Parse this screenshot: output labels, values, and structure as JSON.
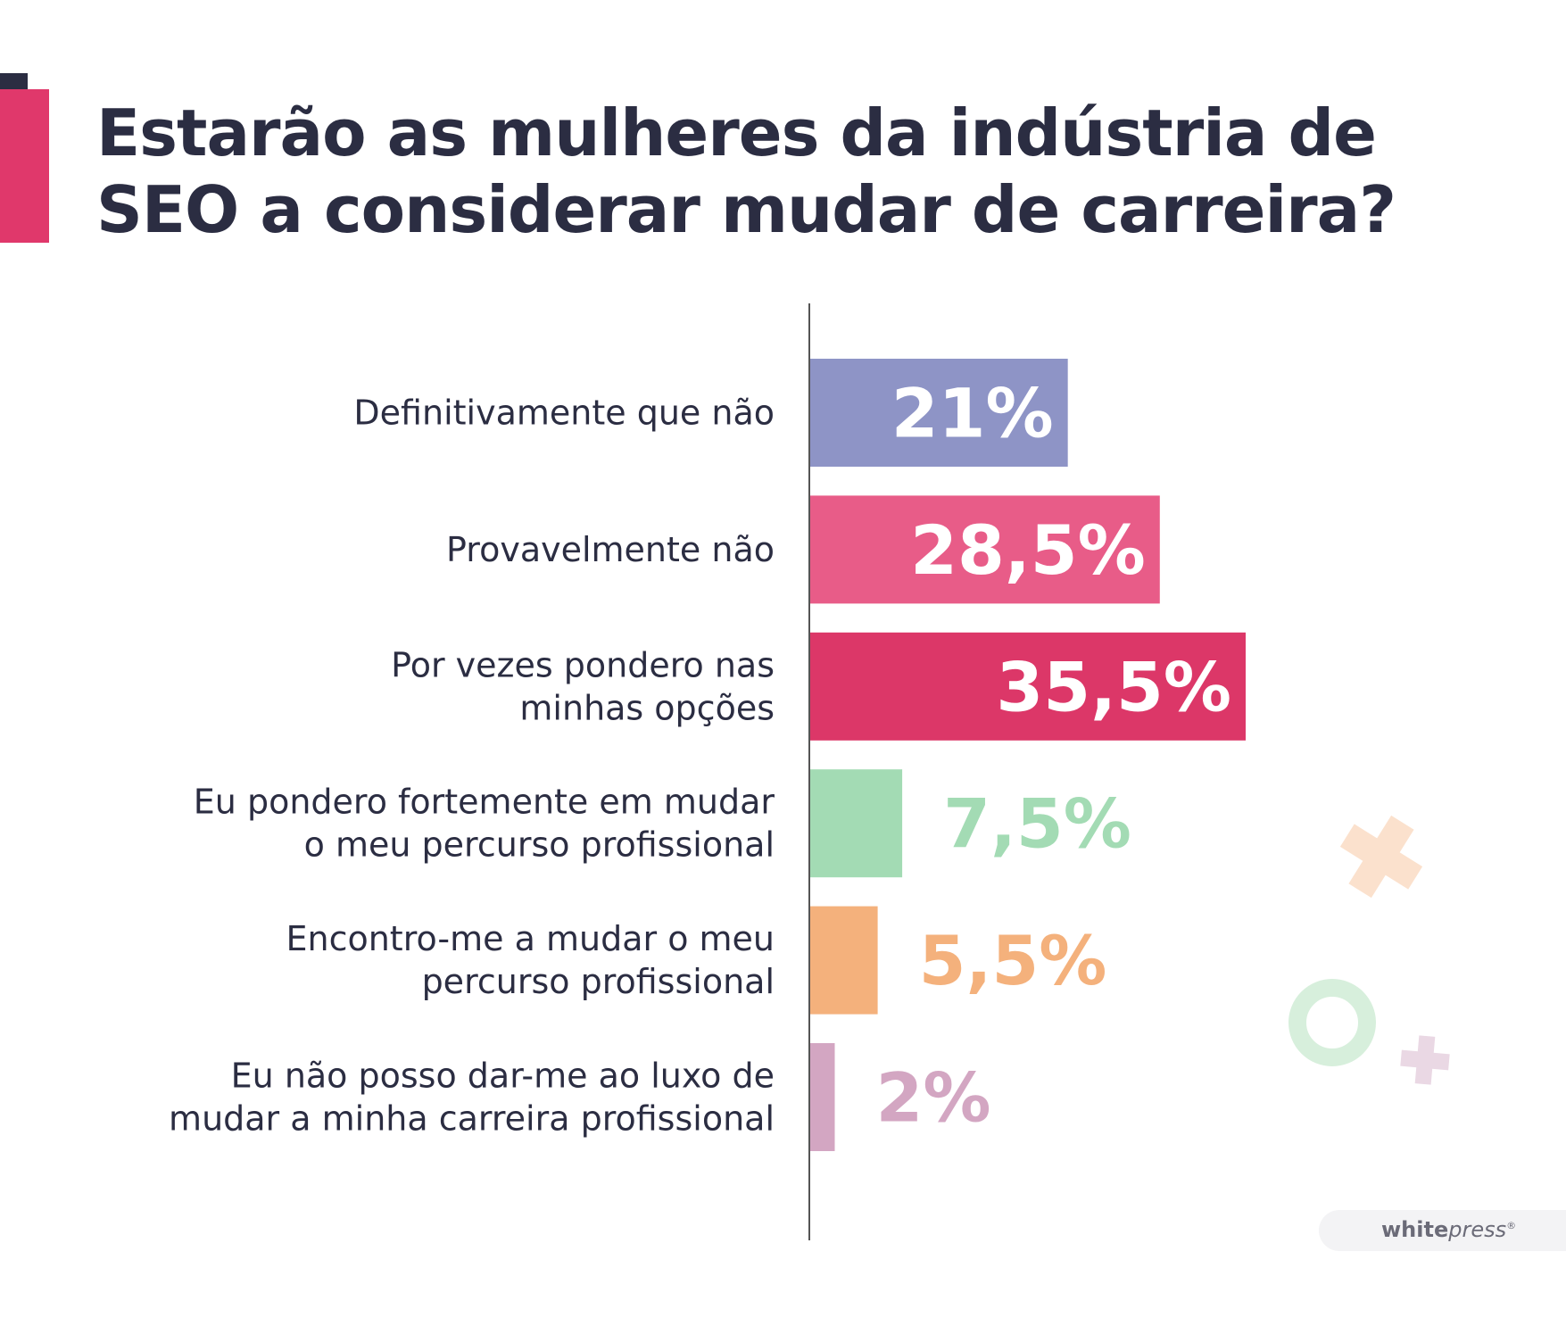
{
  "title": {
    "line1": "Estarão as mulheres da indústria de",
    "line2": "SEO a considerar mudar de carreira?"
  },
  "logo": {
    "bold": "white",
    "italic": "press",
    "reg": "®"
  },
  "decor": {
    "icons": [
      "plus-icon-peach",
      "ring-icon-green",
      "plus-icon-lilac"
    ]
  },
  "chart_data": {
    "type": "bar",
    "orientation": "horizontal",
    "title": "Estarão as mulheres da indústria de SEO a considerar mudar de carreira?",
    "categories": [
      [
        "Definitivamente que não"
      ],
      [
        "Provavelmente não"
      ],
      [
        "Por vezes pondero nas",
        "minhas opções"
      ],
      [
        "Eu pondero fortemente em mudar",
        "o meu percurso profissional"
      ],
      [
        "Encontro-me a mudar o meu",
        "percurso profissional"
      ],
      [
        "Eu não posso dar-me ao luxo de",
        "mudar a minha carreira profissional"
      ]
    ],
    "values": [
      21,
      28.5,
      35.5,
      7.5,
      5.5,
      2
    ],
    "value_labels": [
      "21%",
      "28,5%",
      "35,5%",
      "7,5%",
      "5,5%",
      "2%"
    ],
    "colors": [
      "#8e94c6",
      "#e85c88",
      "#dc3768",
      "#a3dbb4",
      "#f4b17c",
      "#d3a6c2"
    ],
    "label_colors": [
      "#ffffff",
      "#ffffff",
      "#ffffff",
      "#a3dbb4",
      "#f4b17c",
      "#d3a6c2"
    ],
    "label_inside": [
      true,
      true,
      true,
      false,
      false,
      false
    ],
    "xlim": [
      0,
      35.5
    ],
    "grid": false,
    "legend": "none",
    "xlabel": "",
    "ylabel": ""
  }
}
